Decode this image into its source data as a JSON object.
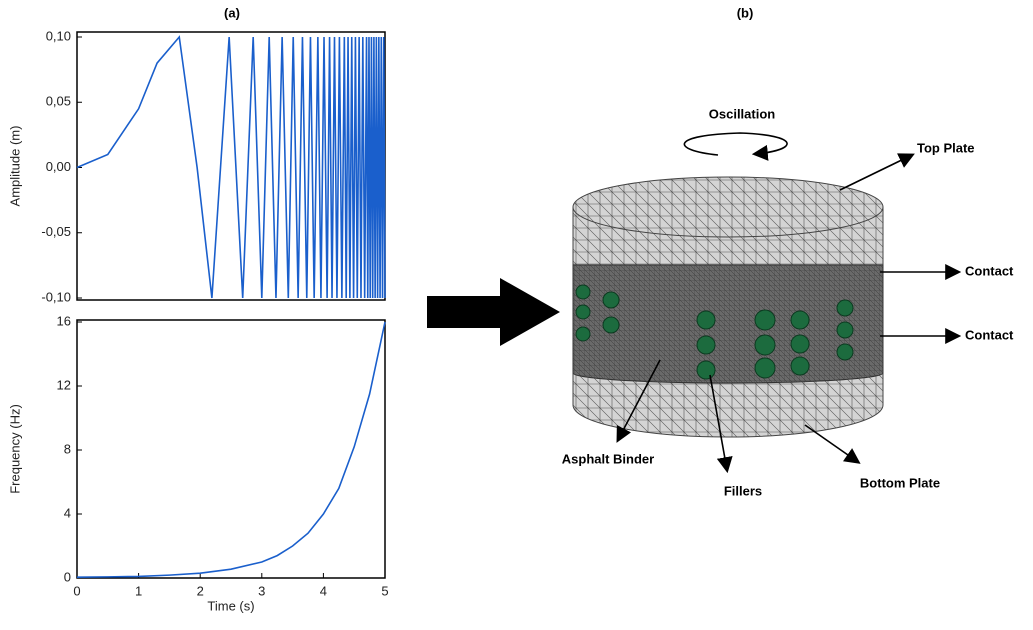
{
  "panel_labels": [
    "(a)",
    "(b)"
  ],
  "chart_data": [
    {
      "type": "line",
      "ylabel": "Amplitude (m)",
      "xlim": [
        0,
        5
      ],
      "ylim": [
        -0.1,
        0.1
      ],
      "yticks": [
        {
          "value": 0.1,
          "label": "0,10"
        },
        {
          "value": 0.05,
          "label": "0,05"
        },
        {
          "value": 0,
          "label": "0,00"
        },
        {
          "value": -0.05,
          "label": "-0,05"
        },
        {
          "value": -0.1,
          "label": "-0,10"
        }
      ],
      "color": "#1a5fcc",
      "x": [
        0,
        0.5,
        1,
        1.3,
        1.66,
        1.95,
        2.19,
        2.33,
        2.47,
        2.58,
        2.69,
        2.86,
        3.0,
        3.12,
        3.23,
        3.33,
        3.43,
        3.51,
        3.59,
        3.66,
        3.73,
        3.79,
        3.85,
        3.91,
        3.96,
        4.01,
        4.06,
        4.1,
        4.14,
        4.18,
        4.22,
        4.26,
        4.3,
        4.34,
        4.37,
        4.4,
        4.43,
        4.46,
        4.49,
        4.52,
        4.55,
        4.58,
        4.61,
        4.64,
        4.67,
        4.7,
        4.72,
        4.74,
        4.76,
        4.78,
        4.8,
        4.82,
        4.84,
        4.86,
        4.88,
        4.9,
        4.92,
        4.94,
        4.96,
        4.98,
        5.0
      ],
      "values": [
        0,
        0.01,
        0.045,
        0.08,
        0.1,
        0,
        -0.1,
        0,
        0.1,
        0,
        -0.1,
        0.1,
        -0.1,
        0.1,
        -0.1,
        0.1,
        -0.1,
        0.1,
        -0.1,
        0.1,
        -0.1,
        0.1,
        -0.1,
        0.1,
        -0.1,
        0.1,
        -0.1,
        0.1,
        -0.1,
        0.1,
        -0.1,
        0.1,
        -0.1,
        0.1,
        -0.1,
        0.1,
        -0.1,
        0.1,
        -0.1,
        0.1,
        -0.1,
        0.1,
        -0.1,
        0.1,
        -0.1,
        0.1,
        -0.1,
        0.1,
        -0.1,
        0.1,
        -0.1,
        0.1,
        -0.1,
        0.1,
        -0.1,
        0.1,
        -0.1,
        0.1,
        -0.1,
        0.1,
        -0.1
      ]
    },
    {
      "type": "line",
      "xlabel": "Time (s)",
      "ylabel": "Frequency (Hz)",
      "xlim": [
        0,
        5
      ],
      "ylim": [
        0,
        16
      ],
      "xticks": [
        0,
        1,
        2,
        3,
        4,
        5
      ],
      "yticks": [
        0,
        4,
        8,
        12,
        16
      ],
      "color": "#1a5fcc",
      "x": [
        0,
        0.5,
        1,
        1.5,
        2,
        2.5,
        3,
        3.25,
        3.5,
        3.75,
        4,
        4.25,
        4.5,
        4.75,
        5
      ],
      "values": [
        0.05,
        0.07,
        0.1,
        0.18,
        0.3,
        0.55,
        1.0,
        1.4,
        2.0,
        2.8,
        4.0,
        5.6,
        8.2,
        11.5,
        16
      ]
    }
  ],
  "diagram": {
    "labels": [
      "Oscillation",
      "Top Plate",
      "Contact",
      "Contact",
      "Asphalt Binder",
      "Fillers",
      "Bottom Plate"
    ]
  }
}
